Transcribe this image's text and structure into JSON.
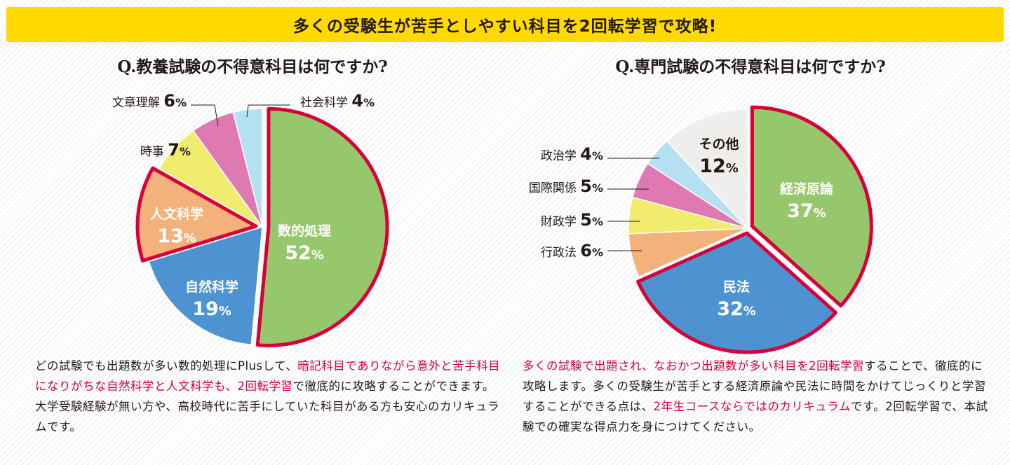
{
  "banner": {
    "text": "多くの受験生が苦手としやすい科目を2回転学習で攻略!"
  },
  "colors": {
    "banner_bg": "#ffd900",
    "highlight": "#d7003a",
    "green": "#97c76c",
    "blue": "#4d93d2",
    "orange": "#f3b27b",
    "yellow": "#f1ec6e",
    "pink": "#df79b1",
    "lightblue": "#b5e0f1",
    "gray": "#efeeec"
  },
  "chart_data": [
    {
      "type": "pie",
      "title": "Q.教養試験の不得意科目は何ですか?",
      "unit": "%",
      "slices": [
        {
          "label": "数的処理",
          "value": 52,
          "color": "#97c76c",
          "highlight": true
        },
        {
          "label": "自然科学",
          "value": 19,
          "color": "#4d93d2"
        },
        {
          "label": "人文科学",
          "value": 13,
          "color": "#f3b27b",
          "highlight": true
        },
        {
          "label": "時事",
          "value": 7,
          "color": "#f1ec6e"
        },
        {
          "label": "文章理解",
          "value": 6,
          "color": "#df79b1"
        },
        {
          "label": "社会科学",
          "value": 4,
          "color": "#b5e0f1"
        }
      ]
    },
    {
      "type": "pie",
      "title": "Q.専門試験の不得意科目は何ですか?",
      "unit": "%",
      "slices": [
        {
          "label": "経済原論",
          "value": 37,
          "color": "#97c76c",
          "highlight": true
        },
        {
          "label": "民法",
          "value": 32,
          "color": "#4d93d2",
          "highlight": true
        },
        {
          "label": "行政法",
          "value": 6,
          "color": "#f3b27b"
        },
        {
          "label": "財政学",
          "value": 5,
          "color": "#f1ec6e"
        },
        {
          "label": "国際関係",
          "value": 5,
          "color": "#df79b1"
        },
        {
          "label": "政治学",
          "value": 4,
          "color": "#b5e0f1"
        },
        {
          "label": "その他",
          "value": 12,
          "color": "#efeeec"
        }
      ]
    }
  ],
  "text_left": {
    "p1": "どの試験でも出題数が多い数的処理にPlusして、",
    "p2": "暗記科目でありながら意外と苦手科目になりがちな自然科学と人文科学も、2回転学習",
    "p3": "で徹底的に攻略することができます。大学受験経験が無い方や、高校時代に苦手にしていた科目がある方も安心のカリキュラムです。"
  },
  "text_right": {
    "p1": "多くの試験で出題され、なおかつ出題数が多い科目を2回転学習",
    "p2": "することで、徹底的に攻略します。多くの受験生が苦手とする経済原論や民法に時間をかけてじっくりと学習することができる点は、",
    "p3": "2年生コースならではのカリキュラム",
    "p4": "です。2回転学習で、本試験での確実な得点力を身につけてください。"
  }
}
